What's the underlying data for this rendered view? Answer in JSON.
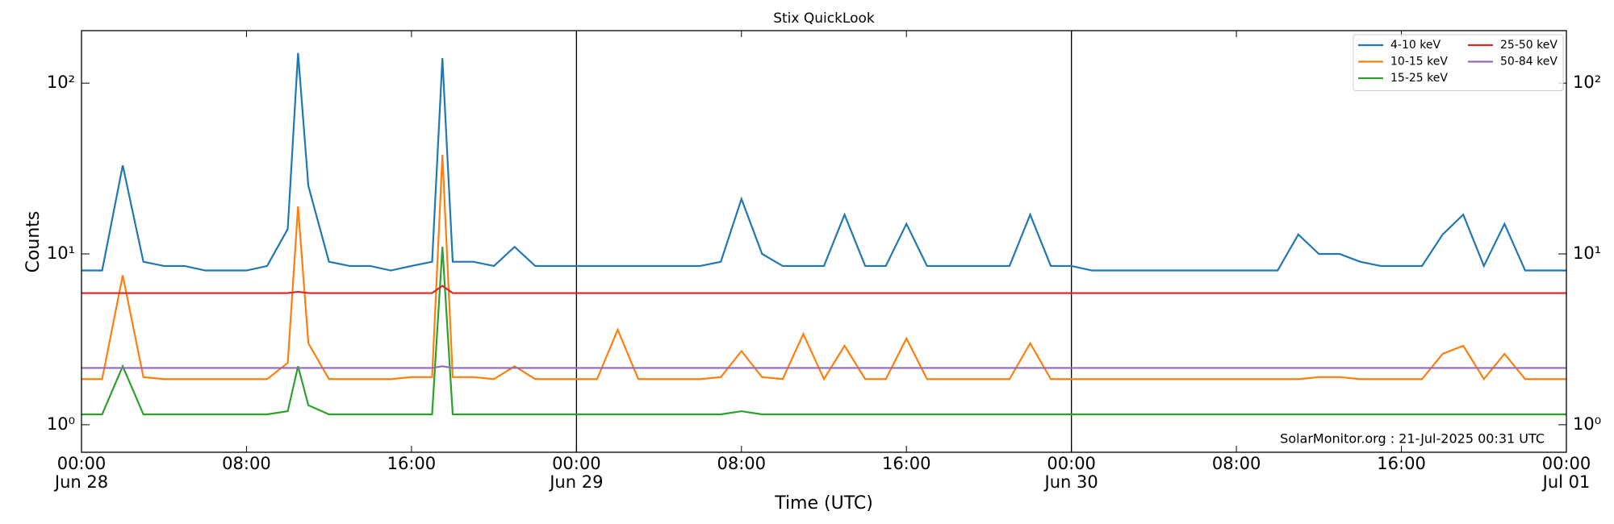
{
  "chart_data": {
    "type": "line",
    "title": "Stix QuickLook",
    "xlabel": "Time (UTC)",
    "ylabel": "Counts",
    "annotation": "SolarMonitor.org : 21-Jul-2025 00:31 UTC",
    "log_y": true,
    "legend_loc": "upper right",
    "legend_columns": 2,
    "x": [
      "Jun 28 00:00",
      "Jun 28 01:00",
      "Jun 28 02:00",
      "Jun 28 03:00",
      "Jun 28 04:00",
      "Jun 28 05:00",
      "Jun 28 06:00",
      "Jun 28 07:00",
      "Jun 28 08:00",
      "Jun 28 09:00",
      "Jun 28 10:00",
      "Jun 28 10:30",
      "Jun 28 11:00",
      "Jun 28 12:00",
      "Jun 28 13:00",
      "Jun 28 14:00",
      "Jun 28 15:00",
      "Jun 28 16:00",
      "Jun 28 17:00",
      "Jun 28 17:30",
      "Jun 28 18:00",
      "Jun 28 19:00",
      "Jun 28 20:00",
      "Jun 28 21:00",
      "Jun 28 22:00",
      "Jun 28 23:00",
      "Jun 29 00:00",
      "Jun 29 01:00",
      "Jun 29 02:00",
      "Jun 29 03:00",
      "Jun 29 04:00",
      "Jun 29 05:00",
      "Jun 29 06:00",
      "Jun 29 07:00",
      "Jun 29 08:00",
      "Jun 29 09:00",
      "Jun 29 10:00",
      "Jun 29 11:00",
      "Jun 29 12:00",
      "Jun 29 13:00",
      "Jun 29 14:00",
      "Jun 29 15:00",
      "Jun 29 16:00",
      "Jun 29 17:00",
      "Jun 29 18:00",
      "Jun 29 19:00",
      "Jun 29 20:00",
      "Jun 29 21:00",
      "Jun 29 22:00",
      "Jun 29 23:00",
      "Jun 30 00:00",
      "Jun 30 01:00",
      "Jun 30 02:00",
      "Jun 30 03:00",
      "Jun 30 04:00",
      "Jun 30 05:00",
      "Jun 30 06:00",
      "Jun 30 07:00",
      "Jun 30 08:00",
      "Jun 30 09:00",
      "Jun 30 10:00",
      "Jun 30 11:00",
      "Jun 30 12:00",
      "Jun 30 13:00",
      "Jun 30 14:00",
      "Jun 30 15:00",
      "Jun 30 16:00",
      "Jun 30 17:00",
      "Jun 30 18:00",
      "Jun 30 19:00",
      "Jun 30 20:00",
      "Jun 30 21:00",
      "Jun 30 22:00",
      "Jun 30 23:00",
      "Jul 01 00:00"
    ],
    "series": [
      {
        "name": "4-10 keV",
        "color": "#1f77b4",
        "values": [
          8,
          8,
          33,
          9,
          8.5,
          8.5,
          8,
          8,
          8,
          8.5,
          14,
          150,
          25,
          9,
          8.5,
          8.5,
          8,
          8.5,
          9,
          140,
          9,
          9,
          8.5,
          11,
          8.5,
          8.5,
          8.5,
          8.5,
          8.5,
          8.5,
          8.5,
          8.5,
          8.5,
          9,
          21,
          10,
          8.5,
          8.5,
          8.5,
          17,
          8.5,
          8.5,
          15,
          8.5,
          8.5,
          8.5,
          8.5,
          8.5,
          17,
          8.5,
          8.5,
          8,
          8,
          8,
          8,
          8,
          8,
          8,
          8,
          8,
          8,
          13,
          10,
          10,
          9,
          8.5,
          8.5,
          8.5,
          13,
          17,
          8.5,
          15,
          8,
          8,
          8
        ]
      },
      {
        "name": "10-15 keV",
        "color": "#ff7f0e",
        "values": [
          1.85,
          1.85,
          7.5,
          1.9,
          1.85,
          1.85,
          1.85,
          1.85,
          1.85,
          1.85,
          2.3,
          19,
          3,
          1.85,
          1.85,
          1.85,
          1.85,
          1.9,
          1.9,
          38,
          1.9,
          1.9,
          1.85,
          2.2,
          1.85,
          1.85,
          1.85,
          1.85,
          3.6,
          1.85,
          1.85,
          1.85,
          1.85,
          1.9,
          2.7,
          1.9,
          1.85,
          3.4,
          1.85,
          2.9,
          1.85,
          1.85,
          3.2,
          1.85,
          1.85,
          1.85,
          1.85,
          1.85,
          3,
          1.85,
          1.85,
          1.85,
          1.85,
          1.85,
          1.85,
          1.85,
          1.85,
          1.85,
          1.85,
          1.85,
          1.85,
          1.85,
          1.9,
          1.9,
          1.85,
          1.85,
          1.85,
          1.85,
          2.6,
          2.9,
          1.85,
          2.6,
          1.85,
          1.85,
          1.85
        ]
      },
      {
        "name": "15-25 keV",
        "color": "#2ca02c",
        "values": [
          1.15,
          1.15,
          2.2,
          1.15,
          1.15,
          1.15,
          1.15,
          1.15,
          1.15,
          1.15,
          1.2,
          2.2,
          1.3,
          1.15,
          1.15,
          1.15,
          1.15,
          1.15,
          1.15,
          11,
          1.15,
          1.15,
          1.15,
          1.15,
          1.15,
          1.15,
          1.15,
          1.15,
          1.15,
          1.15,
          1.15,
          1.15,
          1.15,
          1.15,
          1.2,
          1.15,
          1.15,
          1.15,
          1.15,
          1.15,
          1.15,
          1.15,
          1.15,
          1.15,
          1.15,
          1.15,
          1.15,
          1.15,
          1.15,
          1.15,
          1.15,
          1.15,
          1.15,
          1.15,
          1.15,
          1.15,
          1.15,
          1.15,
          1.15,
          1.15,
          1.15,
          1.15,
          1.15,
          1.15,
          1.15,
          1.15,
          1.15,
          1.15,
          1.15,
          1.15,
          1.15,
          1.15,
          1.15,
          1.15,
          1.15
        ]
      },
      {
        "name": "25-50 keV",
        "color": "#d62728",
        "values": [
          5.9,
          5.9,
          5.9,
          5.9,
          5.9,
          5.9,
          5.9,
          5.9,
          5.9,
          5.9,
          5.9,
          6,
          5.9,
          5.9,
          5.9,
          5.9,
          5.9,
          5.9,
          5.9,
          6.5,
          5.9,
          5.9,
          5.9,
          5.9,
          5.9,
          5.9,
          5.9,
          5.9,
          5.9,
          5.9,
          5.9,
          5.9,
          5.9,
          5.9,
          5.9,
          5.9,
          5.9,
          5.9,
          5.9,
          5.9,
          5.9,
          5.9,
          5.9,
          5.9,
          5.9,
          5.9,
          5.9,
          5.9,
          5.9,
          5.9,
          5.9,
          5.9,
          5.9,
          5.9,
          5.9,
          5.9,
          5.9,
          5.9,
          5.9,
          5.9,
          5.9,
          5.9,
          5.9,
          5.9,
          5.9,
          5.9,
          5.9,
          5.9,
          5.9,
          5.9,
          5.9,
          5.9,
          5.9,
          5.9,
          5.9
        ]
      },
      {
        "name": "50-84 keV",
        "color": "#9467bd",
        "values": [
          2.15,
          2.15,
          2.15,
          2.15,
          2.15,
          2.15,
          2.15,
          2.15,
          2.15,
          2.15,
          2.15,
          2.15,
          2.15,
          2.15,
          2.15,
          2.15,
          2.15,
          2.15,
          2.15,
          2.2,
          2.15,
          2.15,
          2.15,
          2.15,
          2.15,
          2.15,
          2.15,
          2.15,
          2.15,
          2.15,
          2.15,
          2.15,
          2.15,
          2.15,
          2.15,
          2.15,
          2.15,
          2.15,
          2.15,
          2.15,
          2.15,
          2.15,
          2.15,
          2.15,
          2.15,
          2.15,
          2.15,
          2.15,
          2.15,
          2.15,
          2.15,
          2.15,
          2.15,
          2.15,
          2.15,
          2.15,
          2.15,
          2.15,
          2.15,
          2.15,
          2.15,
          2.15,
          2.15,
          2.15,
          2.15,
          2.15,
          2.15,
          2.15,
          2.15,
          2.15,
          2.15,
          2.15,
          2.15,
          2.15,
          2.15
        ]
      }
    ],
    "xlim": [
      "Jun 28 00:00",
      "Jul 01 00:00"
    ],
    "xticks": [
      {
        "value": "Jun 28 00:00",
        "label": "00:00",
        "date": "Jun 28"
      },
      {
        "value": "Jun 28 08:00",
        "label": "08:00"
      },
      {
        "value": "Jun 28 16:00",
        "label": "16:00"
      },
      {
        "value": "Jun 29 00:00",
        "label": "00:00",
        "date": "Jun 29"
      },
      {
        "value": "Jun 29 08:00",
        "label": "08:00"
      },
      {
        "value": "Jun 29 16:00",
        "label": "16:00"
      },
      {
        "value": "Jun 30 00:00",
        "label": "00:00",
        "date": "Jun 30"
      },
      {
        "value": "Jun 30 08:00",
        "label": "08:00"
      },
      {
        "value": "Jun 30 16:00",
        "label": "16:00"
      },
      {
        "value": "Jul 01 00:00",
        "label": "00:00",
        "date": "Jul 01"
      }
    ],
    "ylim": [
      0.69,
      203
    ],
    "yticks": [
      {
        "value": 1,
        "label": "10⁰"
      },
      {
        "value": 10,
        "label": "10¹"
      },
      {
        "value": 100,
        "label": "10²"
      }
    ]
  }
}
